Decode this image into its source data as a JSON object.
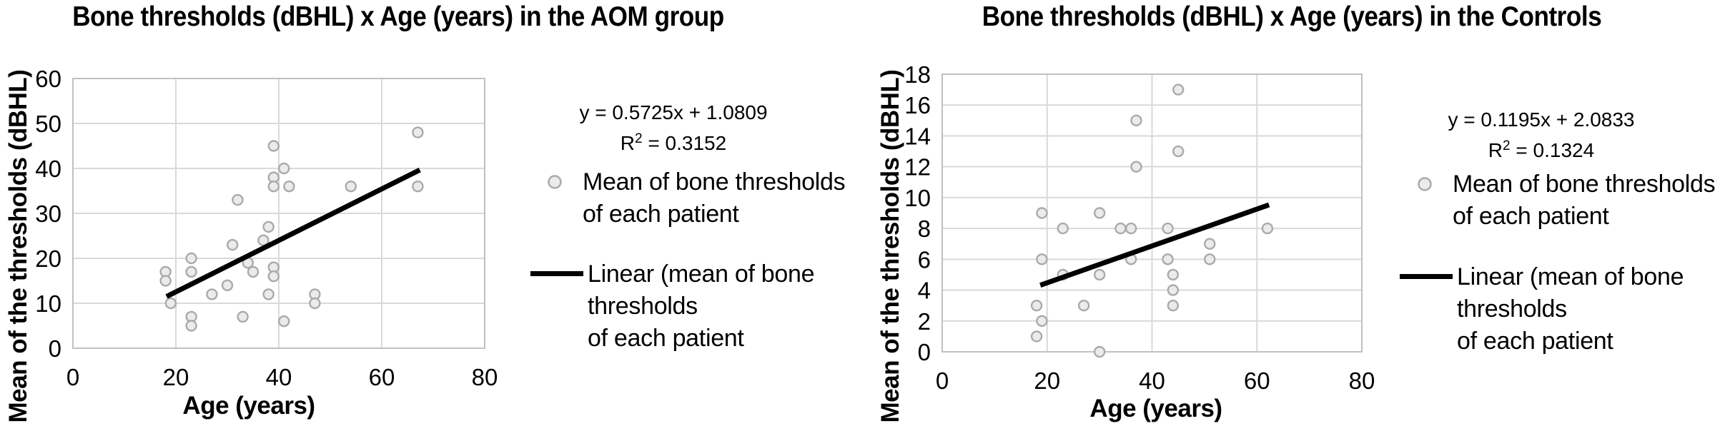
{
  "colors": {
    "background": "#ffffff",
    "text": "#000000",
    "grid": "#d9d9d9",
    "axis_border": "#c0c0c0",
    "marker_fill": "#ebebeb",
    "marker_stroke": "#aaaaaa",
    "trend_line": "#000000"
  },
  "chart_data": [
    {
      "type": "scatter",
      "title": "Bone thresholds (dBHL) x Age (years) in the AOM group",
      "xlabel": "Age (years)",
      "ylabel": "Mean of the thresholds (dBHL)",
      "xlim": [
        0,
        80
      ],
      "ylim": [
        0,
        60
      ],
      "xticks": [
        0,
        20,
        40,
        60,
        80
      ],
      "yticks": [
        0,
        10,
        20,
        30,
        40,
        50,
        60
      ],
      "grid": true,
      "points": [
        [
          18,
          17
        ],
        [
          18,
          15
        ],
        [
          19,
          10
        ],
        [
          23,
          20
        ],
        [
          23,
          17
        ],
        [
          23,
          7
        ],
        [
          23,
          5
        ],
        [
          27,
          12
        ],
        [
          30,
          14
        ],
        [
          31,
          23
        ],
        [
          32,
          33
        ],
        [
          33,
          7
        ],
        [
          34,
          19
        ],
        [
          35,
          17
        ],
        [
          37,
          24
        ],
        [
          38,
          27
        ],
        [
          38,
          12
        ],
        [
          39,
          45
        ],
        [
          39,
          38
        ],
        [
          39,
          36
        ],
        [
          39,
          18
        ],
        [
          39,
          16
        ],
        [
          41,
          40
        ],
        [
          41,
          6
        ],
        [
          42,
          36
        ],
        [
          47,
          12
        ],
        [
          47,
          10
        ],
        [
          54,
          36
        ],
        [
          67,
          48
        ],
        [
          67,
          36
        ]
      ],
      "trendline": {
        "slope": 0.5725,
        "intercept": 1.0809,
        "x_start": 18.2,
        "x_end": 67.4,
        "equation_label": "y = 0.5725x + 1.0809",
        "r2_prefix": "R",
        "r2_sup": "2",
        "r2_rest": " = 0.3152",
        "r_squared": 0.3152
      },
      "legend": {
        "series_lines": [
          "Mean of bone thresholds",
          "of each patient"
        ],
        "trend_lines": [
          "Linear (mean of bone",
          "thresholds",
          "of each patient"
        ]
      }
    },
    {
      "type": "scatter",
      "title": "Bone thresholds (dBHL) x Age (years) in the Controls",
      "xlabel": "Age (years)",
      "ylabel": "Mean of the thresholds (dBHL)",
      "xlim": [
        0,
        80
      ],
      "ylim": [
        0,
        18
      ],
      "xticks": [
        0,
        20,
        40,
        60,
        80
      ],
      "yticks": [
        0,
        2,
        4,
        6,
        8,
        10,
        12,
        14,
        16,
        18
      ],
      "grid": true,
      "points": [
        [
          18,
          1
        ],
        [
          18,
          3
        ],
        [
          19,
          2
        ],
        [
          19,
          6
        ],
        [
          19,
          9
        ],
        [
          23,
          5
        ],
        [
          23,
          8
        ],
        [
          27,
          3
        ],
        [
          30,
          0
        ],
        [
          30,
          5
        ],
        [
          30,
          9
        ],
        [
          34,
          8
        ],
        [
          36,
          6
        ],
        [
          36,
          8
        ],
        [
          37,
          12
        ],
        [
          37,
          15
        ],
        [
          43,
          6
        ],
        [
          43,
          8
        ],
        [
          44,
          3
        ],
        [
          44,
          4
        ],
        [
          44,
          5
        ],
        [
          45,
          13
        ],
        [
          45,
          17
        ],
        [
          51,
          6
        ],
        [
          51,
          7
        ],
        [
          62,
          8
        ]
      ],
      "trendline": {
        "slope": 0.1195,
        "intercept": 2.0833,
        "x_start": 18.7,
        "x_end": 62.3,
        "equation_label": "y = 0.1195x + 2.0833",
        "r2_prefix": "R",
        "r2_sup": "2",
        "r2_rest": " = 0.1324",
        "r_squared": 0.1324
      },
      "legend": {
        "series_lines": [
          "Mean of bone thresholds",
          "of each patient"
        ],
        "trend_lines": [
          "Linear (mean of bone",
          "thresholds",
          "of each patient"
        ]
      }
    }
  ]
}
